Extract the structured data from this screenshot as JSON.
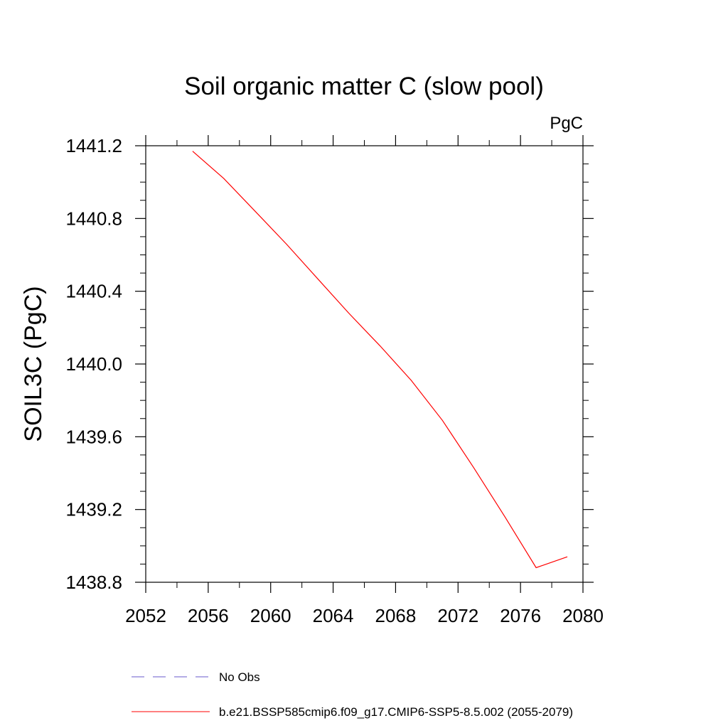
{
  "chart_data": {
    "type": "line",
    "title": "Soil organic matter C (slow pool)",
    "units_label": "PgC",
    "ylabel": "SOIL3C  (PgC)",
    "xlabel": "",
    "xlim": [
      2052,
      2080
    ],
    "ylim": [
      1438.8,
      1441.2
    ],
    "x_ticks": [
      2052,
      2056,
      2060,
      2064,
      2068,
      2072,
      2076,
      2080
    ],
    "x_tick_labels": [
      "2052",
      "2056",
      "2060",
      "2064",
      "2068",
      "2072",
      "2076",
      "2080"
    ],
    "y_ticks": [
      1438.8,
      1439.2,
      1439.6,
      1440.0,
      1440.4,
      1440.8,
      1441.2
    ],
    "y_tick_labels": [
      "1438.8",
      "1439.2",
      "1439.6",
      "1440.0",
      "1440.4",
      "1440.8",
      "1441.2"
    ],
    "grid": false,
    "legend_position": "bottom",
    "series": [
      {
        "name": "No Obs",
        "color": "#6a5acd",
        "dash": "dashed",
        "values": []
      },
      {
        "name": "b.e21.BSSP585cmip6.f09_g17.CMIP6-SSP5-8.5.002 (2055-2079)",
        "color": "#ff0000",
        "dash": "solid",
        "x": [
          2055,
          2057,
          2059,
          2061,
          2063,
          2065,
          2067,
          2069,
          2071,
          2073,
          2075,
          2077,
          2079
        ],
        "values": [
          1441.17,
          1441.02,
          1440.84,
          1440.66,
          1440.47,
          1440.28,
          1440.1,
          1439.91,
          1439.69,
          1439.43,
          1439.16,
          1438.88,
          1438.94
        ]
      }
    ]
  }
}
